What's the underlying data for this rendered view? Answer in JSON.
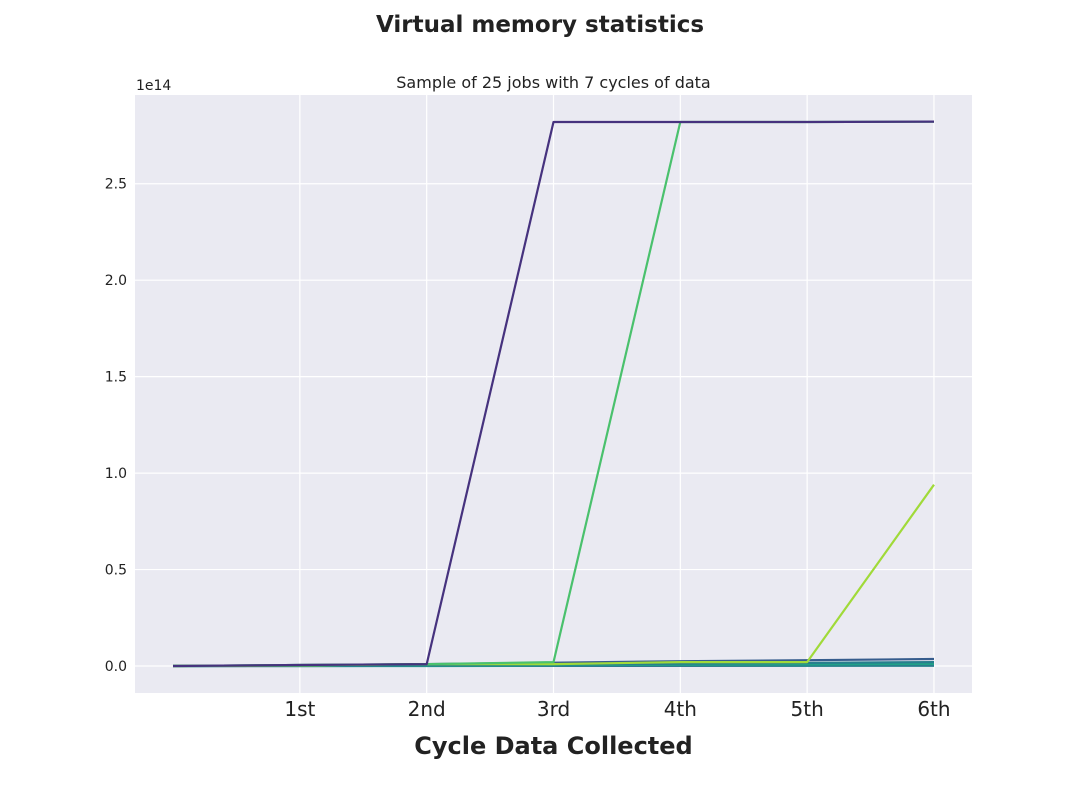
{
  "chart_data": {
    "type": "line",
    "title": "Virtual memory statistics",
    "subtitle": "Sample of 25 jobs with 7 cycles of data",
    "xlabel": "Cycle Data Collected",
    "ylabel": "",
    "y_exponent_label": "1e14",
    "y_scale_multiplier": 100000000000000.0,
    "x": [
      0,
      1,
      2,
      3,
      4,
      5,
      6
    ],
    "x_tick_positions": [
      1,
      2,
      3,
      4,
      5,
      6
    ],
    "x_tick_labels": [
      "1st",
      "2nd",
      "3rd",
      "4th",
      "5th",
      "6th"
    ],
    "xlim": [
      -0.3,
      6.3
    ],
    "y_ticks": [
      0.0,
      0.5,
      1.0,
      1.5,
      2.0,
      2.5
    ],
    "y_tick_labels": [
      "0.0",
      "0.5",
      "1.0",
      "1.5",
      "2.0",
      "2.5"
    ],
    "ylim": [
      -0.14,
      2.96
    ],
    "grid": true,
    "legend": "none",
    "background": "#eaeaf2",
    "series": [
      {
        "color": "#46327e",
        "values": [
          0.0,
          0.005,
          0.01,
          2.82,
          2.82,
          2.82,
          2.822
        ]
      },
      {
        "color": "#4ac16d",
        "values": [
          0.0,
          0.005,
          0.01,
          0.02,
          2.82,
          2.82,
          2.822
        ]
      },
      {
        "color": "#a0da39",
        "values": [
          0.0,
          0.003,
          0.01,
          0.01,
          0.02,
          0.02,
          0.94
        ]
      },
      {
        "color": "#365c8d",
        "values": [
          0.0,
          0.005,
          0.01,
          0.017,
          0.025,
          0.03,
          0.036
        ]
      },
      {
        "color": "#277f8e",
        "values": [
          0.0,
          0.002,
          0.004,
          0.008,
          0.012,
          0.016,
          0.02
        ]
      },
      {
        "color": "#1fa187",
        "values": [
          0.0,
          0.001,
          0.002,
          0.004,
          0.006,
          0.008,
          0.01
        ]
      },
      {
        "color": "#2e6e8e",
        "values": [
          0.0,
          0.001,
          0.001,
          0.002,
          0.003,
          0.004,
          0.005
        ]
      },
      {
        "color": "#21918c",
        "values": [
          0.0,
          0.0,
          0.0,
          0.001,
          0.001,
          0.001,
          0.002
        ]
      },
      {
        "color": "#3b528b",
        "values": [
          0.0,
          0.0,
          0.001,
          0.001,
          0.001,
          0.002,
          0.002
        ]
      }
    ]
  }
}
